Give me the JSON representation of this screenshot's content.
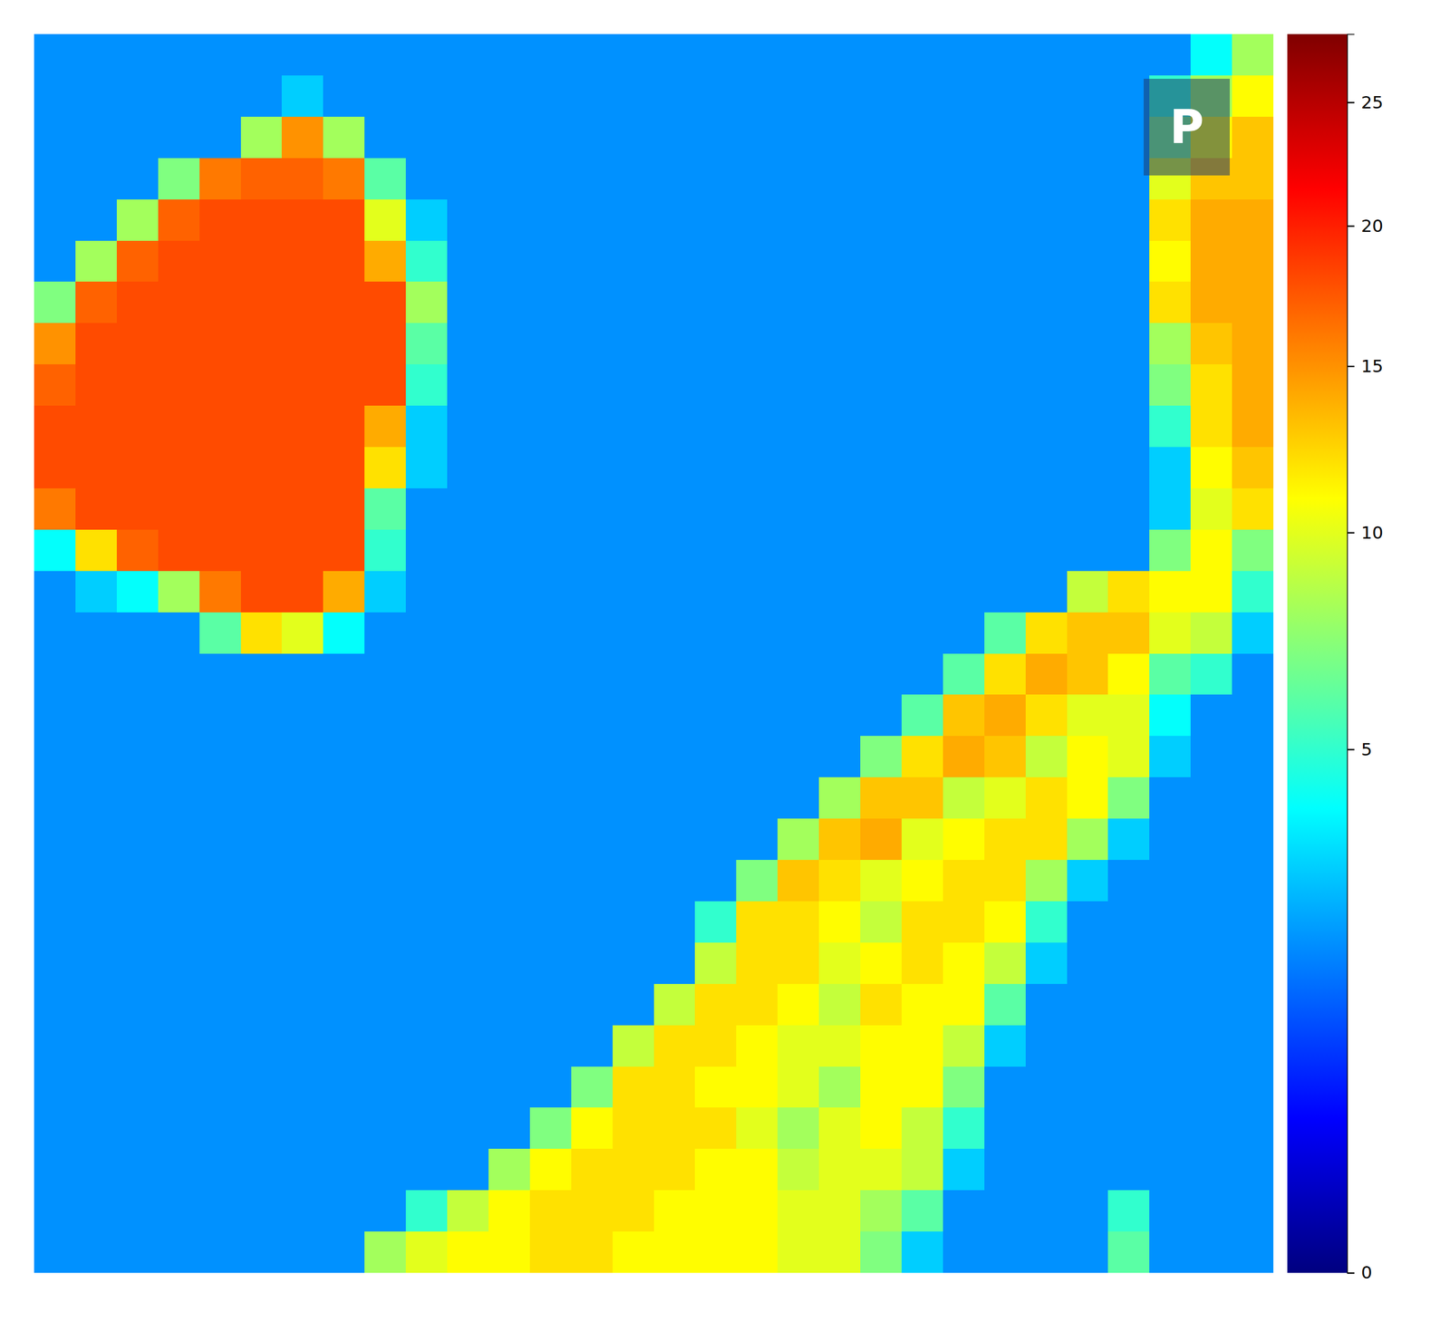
{
  "chart_data": {
    "type": "heatmap",
    "annotation": "P",
    "cells": [
      [
        2,
        2,
        2,
        2,
        2,
        2,
        2,
        2,
        2,
        2,
        2,
        2,
        2,
        2,
        2,
        2,
        2,
        2,
        2,
        2,
        2,
        2,
        2,
        2,
        2,
        2,
        2,
        2,
        4,
        8
      ],
      [
        2,
        2,
        2,
        2,
        2,
        2,
        3,
        2,
        2,
        2,
        2,
        2,
        2,
        2,
        2,
        2,
        2,
        2,
        2,
        2,
        2,
        2,
        2,
        2,
        2,
        2,
        2,
        5,
        8,
        11
      ],
      [
        2,
        2,
        2,
        2,
        2,
        8,
        15,
        8,
        2,
        2,
        2,
        2,
        2,
        2,
        2,
        2,
        2,
        2,
        2,
        2,
        2,
        2,
        2,
        2,
        2,
        2,
        2,
        7,
        11,
        13
      ],
      [
        2,
        2,
        2,
        7,
        16,
        17,
        17,
        16,
        6,
        2,
        2,
        2,
        2,
        2,
        2,
        2,
        2,
        2,
        2,
        2,
        2,
        2,
        2,
        2,
        2,
        2,
        2,
        10,
        13,
        13
      ],
      [
        2,
        2,
        8,
        17,
        18,
        18,
        18,
        18,
        10,
        3,
        2,
        2,
        2,
        2,
        2,
        2,
        2,
        2,
        2,
        2,
        2,
        2,
        2,
        2,
        2,
        2,
        2,
        12,
        14,
        14
      ],
      [
        2,
        8,
        17,
        18,
        18,
        18,
        18,
        18,
        14,
        5,
        2,
        2,
        2,
        2,
        2,
        2,
        2,
        2,
        2,
        2,
        2,
        2,
        2,
        2,
        2,
        2,
        2,
        11,
        14,
        14
      ],
      [
        7,
        17,
        18,
        18,
        18,
        18,
        18,
        18,
        18,
        8,
        2,
        2,
        2,
        2,
        2,
        2,
        2,
        2,
        2,
        2,
        2,
        2,
        2,
        2,
        2,
        2,
        2,
        12,
        14,
        14
      ],
      [
        15,
        18,
        18,
        18,
        18,
        18,
        18,
        18,
        18,
        6,
        2,
        2,
        2,
        2,
        2,
        2,
        2,
        2,
        2,
        2,
        2,
        2,
        2,
        2,
        2,
        2,
        2,
        8,
        13,
        14
      ],
      [
        17,
        18,
        18,
        18,
        18,
        18,
        18,
        18,
        18,
        5,
        2,
        2,
        2,
        2,
        2,
        2,
        2,
        2,
        2,
        2,
        2,
        2,
        2,
        2,
        2,
        2,
        2,
        7,
        12,
        14
      ],
      [
        18,
        18,
        18,
        18,
        18,
        18,
        18,
        18,
        14,
        3,
        2,
        2,
        2,
        2,
        2,
        2,
        2,
        2,
        2,
        2,
        2,
        2,
        2,
        2,
        2,
        2,
        2,
        5,
        12,
        14
      ],
      [
        18,
        18,
        18,
        18,
        18,
        18,
        18,
        18,
        12,
        3,
        2,
        2,
        2,
        2,
        2,
        2,
        2,
        2,
        2,
        2,
        2,
        2,
        2,
        2,
        2,
        2,
        2,
        3,
        11,
        13
      ],
      [
        16,
        18,
        18,
        18,
        18,
        18,
        18,
        18,
        6,
        2,
        2,
        2,
        2,
        2,
        2,
        2,
        2,
        2,
        2,
        2,
        2,
        2,
        2,
        2,
        2,
        2,
        2,
        3,
        10,
        12
      ],
      [
        4,
        12,
        17,
        18,
        18,
        18,
        18,
        18,
        5,
        2,
        2,
        2,
        2,
        2,
        2,
        2,
        2,
        2,
        2,
        2,
        2,
        2,
        2,
        2,
        2,
        2,
        2,
        7,
        11,
        7
      ],
      [
        2,
        3,
        4,
        8,
        16,
        18,
        18,
        14,
        3,
        2,
        2,
        2,
        2,
        2,
        2,
        2,
        2,
        2,
        2,
        2,
        2,
        2,
        2,
        2,
        2,
        9,
        12,
        11,
        11,
        5
      ],
      [
        2,
        2,
        2,
        2,
        6,
        12,
        10,
        4,
        2,
        2,
        2,
        2,
        2,
        2,
        2,
        2,
        2,
        2,
        2,
        2,
        2,
        2,
        2,
        6,
        12,
        13,
        13,
        10,
        9,
        3
      ],
      [
        2,
        2,
        2,
        2,
        2,
        2,
        2,
        2,
        2,
        2,
        2,
        2,
        2,
        2,
        2,
        2,
        2,
        2,
        2,
        2,
        2,
        2,
        6,
        12,
        14,
        13,
        11,
        6,
        5,
        2
      ],
      [
        2,
        2,
        2,
        2,
        2,
        2,
        2,
        2,
        2,
        2,
        2,
        2,
        2,
        2,
        2,
        2,
        2,
        2,
        2,
        2,
        2,
        6,
        13,
        14,
        12,
        10,
        10,
        4,
        2,
        2
      ],
      [
        2,
        2,
        2,
        2,
        2,
        2,
        2,
        2,
        2,
        2,
        2,
        2,
        2,
        2,
        2,
        2,
        2,
        2,
        2,
        2,
        7,
        12,
        14,
        13,
        9,
        11,
        10,
        3,
        2,
        2
      ],
      [
        2,
        2,
        2,
        2,
        2,
        2,
        2,
        2,
        2,
        2,
        2,
        2,
        2,
        2,
        2,
        2,
        2,
        2,
        2,
        8,
        13,
        13,
        9,
        10,
        12,
        11,
        7,
        2,
        2,
        2
      ],
      [
        2,
        2,
        2,
        2,
        2,
        2,
        2,
        2,
        2,
        2,
        2,
        2,
        2,
        2,
        2,
        2,
        2,
        2,
        8,
        13,
        14,
        10,
        11,
        12,
        12,
        8,
        3,
        2,
        2,
        2
      ],
      [
        2,
        2,
        2,
        2,
        2,
        2,
        2,
        2,
        2,
        2,
        2,
        2,
        2,
        2,
        2,
        2,
        2,
        7,
        13,
        12,
        10,
        11,
        12,
        12,
        8,
        3,
        2,
        2,
        2,
        2
      ],
      [
        2,
        2,
        2,
        2,
        2,
        2,
        2,
        2,
        2,
        2,
        2,
        2,
        2,
        2,
        2,
        2,
        5,
        12,
        12,
        11,
        9,
        12,
        12,
        11,
        5,
        2,
        2,
        2,
        2,
        2
      ],
      [
        2,
        2,
        2,
        2,
        2,
        2,
        2,
        2,
        2,
        2,
        2,
        2,
        2,
        2,
        2,
        2,
        9,
        12,
        12,
        10,
        11,
        12,
        11,
        9,
        3,
        2,
        2,
        2,
        2,
        2
      ],
      [
        2,
        2,
        2,
        2,
        2,
        2,
        2,
        2,
        2,
        2,
        2,
        2,
        2,
        2,
        2,
        9,
        12,
        12,
        11,
        9,
        12,
        11,
        11,
        6,
        2,
        2,
        2,
        2,
        2,
        2
      ],
      [
        2,
        2,
        2,
        2,
        2,
        2,
        2,
        2,
        2,
        2,
        2,
        2,
        2,
        2,
        9,
        12,
        12,
        11,
        10,
        10,
        11,
        11,
        9,
        3,
        2,
        2,
        2,
        2,
        2,
        2
      ],
      [
        2,
        2,
        2,
        2,
        2,
        2,
        2,
        2,
        2,
        2,
        2,
        2,
        2,
        7,
        12,
        12,
        11,
        11,
        10,
        8,
        11,
        11,
        7,
        2,
        2,
        2,
        2,
        2,
        2,
        2
      ],
      [
        2,
        2,
        2,
        2,
        2,
        2,
        2,
        2,
        2,
        2,
        2,
        2,
        7,
        11,
        12,
        12,
        12,
        10,
        8,
        10,
        11,
        9,
        5,
        2,
        2,
        2,
        2,
        2,
        2,
        2
      ],
      [
        2,
        2,
        2,
        2,
        2,
        2,
        2,
        2,
        2,
        2,
        2,
        8,
        11,
        12,
        12,
        12,
        11,
        11,
        9,
        10,
        10,
        9,
        3,
        2,
        2,
        2,
        2,
        2,
        2,
        2
      ],
      [
        2,
        2,
        2,
        2,
        2,
        2,
        2,
        2,
        2,
        5,
        9,
        11,
        12,
        12,
        12,
        11,
        11,
        11,
        10,
        10,
        8,
        6,
        2,
        2,
        2,
        2,
        5,
        2,
        2,
        2
      ],
      [
        2,
        2,
        2,
        2,
        2,
        2,
        2,
        2,
        8,
        10,
        11,
        11,
        12,
        12,
        11,
        11,
        11,
        11,
        10,
        10,
        7,
        3,
        2,
        2,
        2,
        2,
        6,
        2,
        2,
        2
      ]
    ],
    "colorbar": {
      "range": [
        0,
        28
      ],
      "ticks": [
        0,
        5,
        10,
        15,
        20,
        25
      ]
    }
  }
}
